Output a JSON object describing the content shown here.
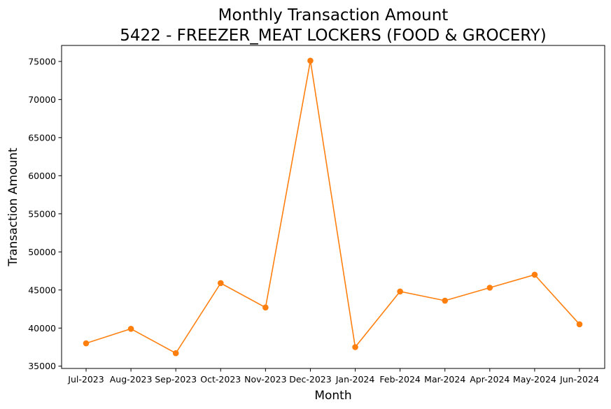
{
  "chart_data": {
    "type": "line",
    "title": "Monthly Transaction Amount",
    "subtitle": "5422 - FREEZER_MEAT LOCKERS (FOOD & GROCERY)",
    "xlabel": "Month",
    "ylabel": "Transaction Amount",
    "categories": [
      "Jul-2023",
      "Aug-2023",
      "Sep-2023",
      "Oct-2023",
      "Nov-2023",
      "Dec-2023",
      "Jan-2024",
      "Feb-2024",
      "Mar-2024",
      "Apr-2024",
      "May-2024",
      "Jun-2024"
    ],
    "series": [
      {
        "values": [
          38000,
          39900,
          36700,
          45900,
          42700,
          75100,
          37500,
          44800,
          43600,
          45300,
          47000,
          40500
        ],
        "color": "#ff7f0e",
        "marker": "circle"
      }
    ],
    "ylim": [
      34700,
      77100
    ],
    "yticks": [
      35000,
      40000,
      45000,
      50000,
      55000,
      60000,
      65000,
      70000,
      75000
    ],
    "grid": false,
    "legend": "none"
  }
}
